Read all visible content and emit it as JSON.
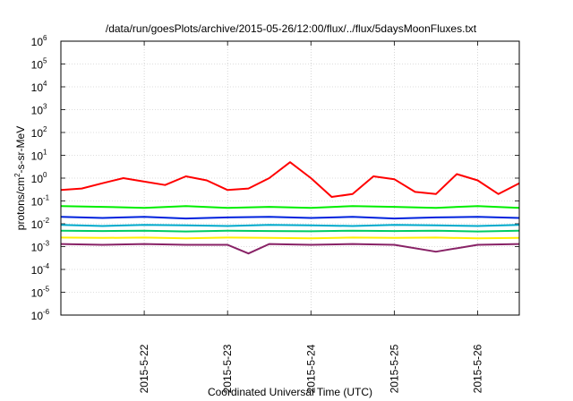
{
  "chart_data": {
    "type": "line",
    "title": "/data/run/goesPlots/archive/2015-05-26/12:00/flux/../flux/5daysMoonFluxes.txt",
    "xlabel": "Coordinated Universal Time (UTC)",
    "ylabel": {
      "base": "protons/cm",
      "sup": "2",
      "rest": "-s-sr-MeV"
    },
    "y_scale": "log",
    "ylim_exp": [
      -6,
      6
    ],
    "y_ticks": [
      {
        "b": "10",
        "e": "-6"
      },
      {
        "b": "10",
        "e": "-5"
      },
      {
        "b": "10",
        "e": "-4"
      },
      {
        "b": "10",
        "e": "-3"
      },
      {
        "b": "10",
        "e": "-2"
      },
      {
        "b": "10",
        "e": "-1"
      },
      {
        "b": "10",
        "e": "0"
      },
      {
        "b": "10",
        "e": "1"
      },
      {
        "b": "10",
        "e": "2"
      },
      {
        "b": "10",
        "e": "3"
      },
      {
        "b": "10",
        "e": "4"
      },
      {
        "b": "10",
        "e": "5"
      },
      {
        "b": "10",
        "e": "6"
      }
    ],
    "x_range_days": [
      "2015-05-21T00:00",
      "2015-05-26T12:00"
    ],
    "x_ticks": [
      "2015-5-22",
      "2015-5-23",
      "2015-5-24",
      "2015-5-25",
      "2015-5-26"
    ],
    "grid": true,
    "series": [
      {
        "color": "#ff0000",
        "x": [
          "2015-05-21T00:00",
          "2015-05-21T06:00",
          "2015-05-21T12:00",
          "2015-05-21T18:00",
          "2015-05-22T00:00",
          "2015-05-22T06:00",
          "2015-05-22T12:00",
          "2015-05-22T18:00",
          "2015-05-23T00:00",
          "2015-05-23T06:00",
          "2015-05-23T12:00",
          "2015-05-23T18:00",
          "2015-05-24T00:00",
          "2015-05-24T06:00",
          "2015-05-24T12:00",
          "2015-05-24T18:00",
          "2015-05-25T00:00",
          "2015-05-25T06:00",
          "2015-05-25T12:00",
          "2015-05-25T18:00",
          "2015-05-26T00:00",
          "2015-05-26T06:00",
          "2015-05-26T12:00"
        ],
        "values": [
          0.3,
          0.35,
          0.6,
          1.0,
          0.7,
          0.5,
          1.2,
          0.8,
          0.3,
          0.35,
          1.0,
          5.0,
          1.0,
          0.15,
          0.2,
          1.2,
          0.9,
          0.25,
          0.2,
          1.5,
          0.8,
          0.2,
          0.6
        ]
      },
      {
        "color": "#00ee00",
        "x": [
          "2015-05-21T00:00",
          "2015-05-21T12:00",
          "2015-05-22T00:00",
          "2015-05-22T12:00",
          "2015-05-23T00:00",
          "2015-05-23T12:00",
          "2015-05-24T00:00",
          "2015-05-24T12:00",
          "2015-05-25T00:00",
          "2015-05-25T12:00",
          "2015-05-26T00:00",
          "2015-05-26T12:00"
        ],
        "values": [
          0.06,
          0.055,
          0.05,
          0.06,
          0.05,
          0.055,
          0.05,
          0.06,
          0.055,
          0.05,
          0.06,
          0.05
        ]
      },
      {
        "color": "#0022dd",
        "x": [
          "2015-05-21T00:00",
          "2015-05-21T12:00",
          "2015-05-22T00:00",
          "2015-05-22T12:00",
          "2015-05-23T00:00",
          "2015-05-23T12:00",
          "2015-05-24T00:00",
          "2015-05-24T12:00",
          "2015-05-25T00:00",
          "2015-05-25T12:00",
          "2015-05-26T00:00",
          "2015-05-26T12:00"
        ],
        "values": [
          0.02,
          0.018,
          0.02,
          0.017,
          0.019,
          0.02,
          0.018,
          0.02,
          0.017,
          0.019,
          0.02,
          0.018
        ]
      },
      {
        "color": "#00aacc",
        "x": [
          "2015-05-21T00:00",
          "2015-05-21T12:00",
          "2015-05-22T00:00",
          "2015-05-22T12:00",
          "2015-05-23T00:00",
          "2015-05-23T12:00",
          "2015-05-24T00:00",
          "2015-05-24T12:00",
          "2015-05-25T00:00",
          "2015-05-25T12:00",
          "2015-05-26T00:00",
          "2015-05-26T12:00"
        ],
        "values": [
          0.009,
          0.008,
          0.009,
          0.0085,
          0.008,
          0.009,
          0.0085,
          0.008,
          0.009,
          0.0085,
          0.008,
          0.009
        ]
      },
      {
        "color": "#00cc66",
        "x": [
          "2015-05-21T00:00",
          "2015-05-21T12:00",
          "2015-05-22T00:00",
          "2015-05-22T12:00",
          "2015-05-23T00:00",
          "2015-05-23T12:00",
          "2015-05-24T00:00",
          "2015-05-24T12:00",
          "2015-05-25T00:00",
          "2015-05-25T12:00",
          "2015-05-26T00:00",
          "2015-05-26T12:00"
        ],
        "values": [
          0.005,
          0.0048,
          0.005,
          0.0046,
          0.005,
          0.0048,
          0.0047,
          0.005,
          0.0048,
          0.005,
          0.0046,
          0.005
        ]
      },
      {
        "color": "#ffee00",
        "x": [
          "2015-05-21T00:00",
          "2015-05-21T12:00",
          "2015-05-22T00:00",
          "2015-05-22T12:00",
          "2015-05-23T00:00",
          "2015-05-23T12:00",
          "2015-05-24T00:00",
          "2015-05-24T12:00",
          "2015-05-25T00:00",
          "2015-05-25T12:00",
          "2015-05-26T00:00",
          "2015-05-26T12:00"
        ],
        "values": [
          0.0025,
          0.0024,
          0.0025,
          0.0023,
          0.0025,
          0.0024,
          0.0023,
          0.0025,
          0.0024,
          0.0025,
          0.0023,
          0.0024
        ]
      },
      {
        "color": "#882266",
        "x": [
          "2015-05-21T00:00",
          "2015-05-21T12:00",
          "2015-05-22T00:00",
          "2015-05-22T12:00",
          "2015-05-23T00:00",
          "2015-05-23T06:00",
          "2015-05-23T12:00",
          "2015-05-24T00:00",
          "2015-05-24T12:00",
          "2015-05-25T00:00",
          "2015-05-25T12:00",
          "2015-05-26T00:00",
          "2015-05-26T12:00"
        ],
        "values": [
          0.0013,
          0.0012,
          0.0013,
          0.0012,
          0.0012,
          0.0005,
          0.0013,
          0.0012,
          0.0013,
          0.0012,
          0.0006,
          0.0012,
          0.0013
        ]
      }
    ]
  }
}
